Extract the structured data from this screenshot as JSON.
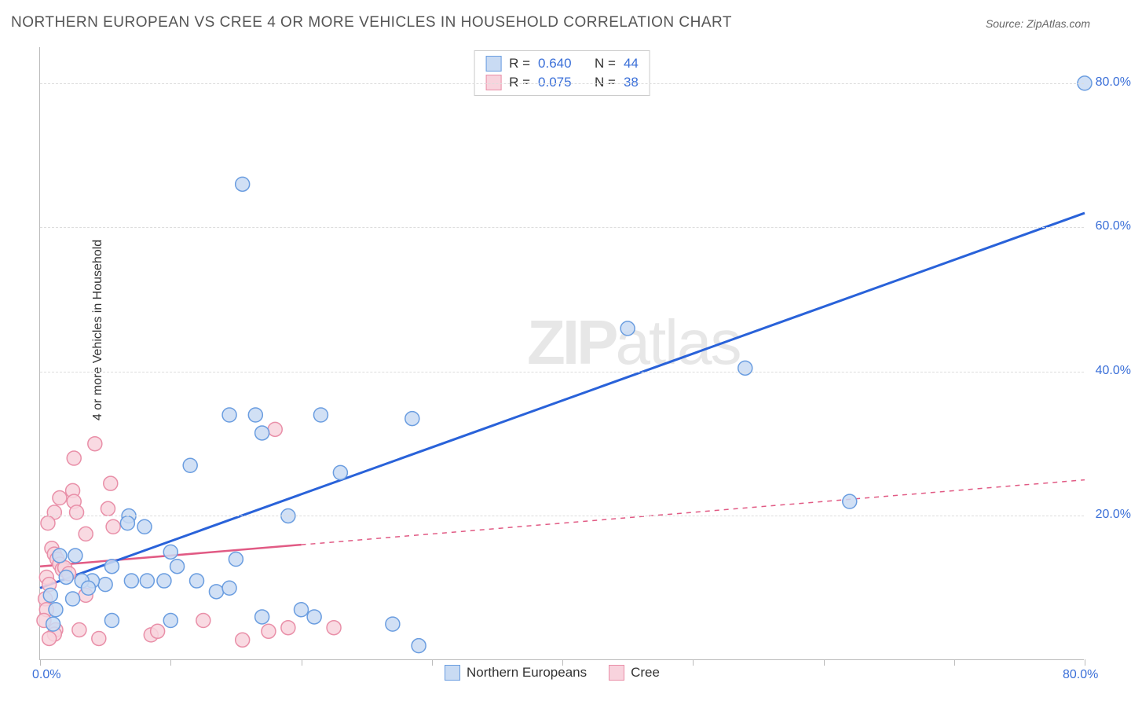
{
  "title": "NORTHERN EUROPEAN VS CREE 4 OR MORE VEHICLES IN HOUSEHOLD CORRELATION CHART",
  "source": "Source: ZipAtlas.com",
  "ylabel": "4 or more Vehicles in Household",
  "watermark_zip": "ZIP",
  "watermark_atlas": "atlas",
  "chart": {
    "type": "scatter",
    "background_color": "#ffffff",
    "grid_color": "#dddddd",
    "axis_color": "#bbbbbb",
    "tick_label_color": "#3a6fd8",
    "label_color": "#333333",
    "xlim": [
      0,
      80
    ],
    "ylim": [
      0,
      85
    ],
    "xtick_positions": [
      0,
      10,
      20,
      30,
      40,
      50,
      60,
      70,
      80
    ],
    "xtick_labels": {
      "0": "0.0%",
      "80": "80.0%"
    },
    "ytick_positions": [
      20,
      40,
      60,
      80
    ],
    "ytick_labels": {
      "20": "20.0%",
      "40": "40.0%",
      "60": "60.0%",
      "80": "80.0%"
    },
    "marker_radius": 9,
    "marker_stroke_width": 1.5,
    "label_fontsize": 16,
    "title_fontsize": 19,
    "tick_fontsize": 16
  },
  "series": {
    "blue": {
      "name": "Northern Europeans",
      "fill": "#c9dbf3",
      "stroke": "#6a9de0",
      "line_color": "#2962d9",
      "line_width": 3,
      "R_label": "R =",
      "R": "0.640",
      "N_label": "N =",
      "N": "44",
      "trend": {
        "x1": 0,
        "y1": 10,
        "x2": 80,
        "y2": 62
      },
      "points": [
        [
          80,
          80
        ],
        [
          45,
          46
        ],
        [
          54,
          40.5
        ],
        [
          62,
          22
        ],
        [
          15.5,
          66
        ],
        [
          14.5,
          34
        ],
        [
          16.5,
          34
        ],
        [
          21.5,
          34
        ],
        [
          28.5,
          33.5
        ],
        [
          17,
          31.5
        ],
        [
          11.5,
          27
        ],
        [
          23,
          26
        ],
        [
          6.8,
          20
        ],
        [
          6.7,
          19
        ],
        [
          8,
          18.5
        ],
        [
          19,
          20
        ],
        [
          1.5,
          14.5
        ],
        [
          2.7,
          14.5
        ],
        [
          5.5,
          13
        ],
        [
          5,
          10.5
        ],
        [
          4,
          11
        ],
        [
          7,
          11
        ],
        [
          8.2,
          11
        ],
        [
          9.5,
          11
        ],
        [
          10.5,
          13
        ],
        [
          3.2,
          11
        ],
        [
          3.7,
          10
        ],
        [
          10,
          15
        ],
        [
          12,
          11
        ],
        [
          13.5,
          9.5
        ],
        [
          14.5,
          10
        ],
        [
          15,
          14
        ],
        [
          17,
          6
        ],
        [
          20,
          7
        ],
        [
          21,
          6
        ],
        [
          10,
          5.5
        ],
        [
          5.5,
          5.5
        ],
        [
          27,
          5
        ],
        [
          29,
          2
        ],
        [
          1.2,
          7
        ],
        [
          1.0,
          5
        ],
        [
          0.8,
          9
        ],
        [
          2.0,
          11.5
        ],
        [
          2.5,
          8.5
        ]
      ]
    },
    "pink": {
      "name": "Cree",
      "fill": "#f8d3dd",
      "stroke": "#e98fa8",
      "line_color": "#e15a84",
      "line_width": 2.5,
      "dash": "6,6",
      "R_label": "R =",
      "R": "0.075",
      "N_label": "N =",
      "N": "38",
      "trend": {
        "x1": 0,
        "y1": 13,
        "x2": 80,
        "y2": 25,
        "solid_until_x": 20
      },
      "points": [
        [
          4.2,
          30
        ],
        [
          2.6,
          28
        ],
        [
          1.5,
          22.5
        ],
        [
          2.5,
          23.5
        ],
        [
          2.6,
          22
        ],
        [
          5.2,
          21
        ],
        [
          5.4,
          24.5
        ],
        [
          2.8,
          20.5
        ],
        [
          18,
          32
        ],
        [
          1.1,
          20.5
        ],
        [
          0.6,
          19
        ],
        [
          3.5,
          17.5
        ],
        [
          5.6,
          18.5
        ],
        [
          0.9,
          15.5
        ],
        [
          1.1,
          14.7
        ],
        [
          1.3,
          14.0
        ],
        [
          1.5,
          13.3
        ],
        [
          1.7,
          12.6
        ],
        [
          1.9,
          12.8
        ],
        [
          2.2,
          12.0
        ],
        [
          0.5,
          11.5
        ],
        [
          0.7,
          10.5
        ],
        [
          0.4,
          8.5
        ],
        [
          0.5,
          7.0
        ],
        [
          0.3,
          5.5
        ],
        [
          1.2,
          4.2
        ],
        [
          1.1,
          3.6
        ],
        [
          0.7,
          3.0
        ],
        [
          3.5,
          9.0
        ],
        [
          3.0,
          4.2
        ],
        [
          4.5,
          3.0
        ],
        [
          8.5,
          3.5
        ],
        [
          9.0,
          4.0
        ],
        [
          12.5,
          5.5
        ],
        [
          15.5,
          2.8
        ],
        [
          17.5,
          4.0
        ],
        [
          19.0,
          4.5
        ],
        [
          22.5,
          4.5
        ]
      ]
    }
  }
}
